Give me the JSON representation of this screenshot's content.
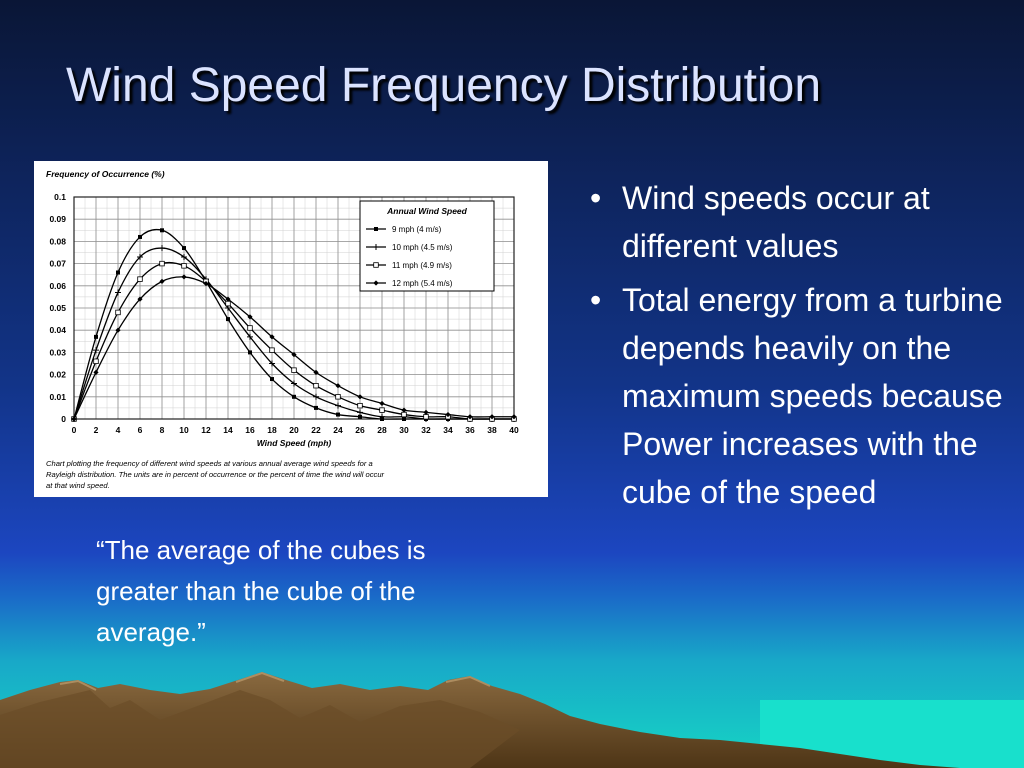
{
  "slide": {
    "title": "Wind Speed Frequency Distribution",
    "bullet_symbol": "•",
    "bullets": [
      "Wind speeds occur at different values",
      "Total energy from a turbine depends heavily on the maximum speeds because Power increases with the cube of the speed"
    ],
    "quote": "“The average of the cubes is greater than the cube of the average.”",
    "colors": {
      "text": "#ffffff",
      "title": "#dbe3ff",
      "sky_top": "#0a1636",
      "sky_bottom": "#1c46c0",
      "water": "#18d8c8",
      "mountain": "#7a5a34"
    }
  },
  "chart_data": {
    "type": "line",
    "ylabel": "Frequency of Occurrence (%)",
    "xlabel": "Wind Speed (mph)",
    "xlim": [
      0,
      40
    ],
    "ylim": [
      0,
      0.1
    ],
    "grid": true,
    "x_ticks": [
      "0",
      "2",
      "4",
      "6",
      "8",
      "10",
      "12",
      "14",
      "16",
      "18",
      "20",
      "22",
      "24",
      "26",
      "28",
      "30",
      "32",
      "34",
      "36",
      "38",
      "40"
    ],
    "y_ticks": [
      "0",
      "0.01",
      "0.02",
      "0.03",
      "0.04",
      "0.05",
      "0.06",
      "0.07",
      "0.08",
      "0.09",
      "0.1"
    ],
    "legend_title": "Annual Wind Speed",
    "legend_position": "top-right",
    "caption": "Chart plotting the frequency of different wind speeds at various annual average wind speeds for a Rayleigh distribution. The units are in percent of occurrence or the percent of time the wind will occur at that wind speed.",
    "x": [
      0,
      2,
      4,
      6,
      8,
      10,
      12,
      14,
      16,
      18,
      20,
      22,
      24,
      26,
      28,
      30,
      32,
      34,
      36,
      38,
      40
    ],
    "series": [
      {
        "name": "9 mph (4 m/s)",
        "marker": "square",
        "values": [
          0,
          0.037,
          0.066,
          0.082,
          0.085,
          0.077,
          0.062,
          0.045,
          0.03,
          0.018,
          0.01,
          0.005,
          0.002,
          0.001,
          0,
          0,
          0,
          0,
          0,
          0,
          0
        ]
      },
      {
        "name": "10 mph (4.5 m/s)",
        "marker": "plus",
        "values": [
          0,
          0.031,
          0.057,
          0.073,
          0.077,
          0.073,
          0.063,
          0.05,
          0.037,
          0.025,
          0.016,
          0.01,
          0.006,
          0.003,
          0.001,
          0.001,
          0,
          0,
          0,
          0,
          0
        ]
      },
      {
        "name": "11 mph (4.9 m/s)",
        "marker": "open-square",
        "values": [
          0,
          0.026,
          0.048,
          0.063,
          0.07,
          0.069,
          0.062,
          0.052,
          0.041,
          0.031,
          0.022,
          0.015,
          0.01,
          0.006,
          0.004,
          0.002,
          0.001,
          0.001,
          0,
          0,
          0
        ]
      },
      {
        "name": "12 mph (5.4 m/s)",
        "marker": "diamond",
        "values": [
          0,
          0.021,
          0.04,
          0.054,
          0.062,
          0.064,
          0.061,
          0.054,
          0.046,
          0.037,
          0.029,
          0.021,
          0.015,
          0.01,
          0.007,
          0.004,
          0.003,
          0.002,
          0.001,
          0.001,
          0.001
        ]
      }
    ]
  }
}
